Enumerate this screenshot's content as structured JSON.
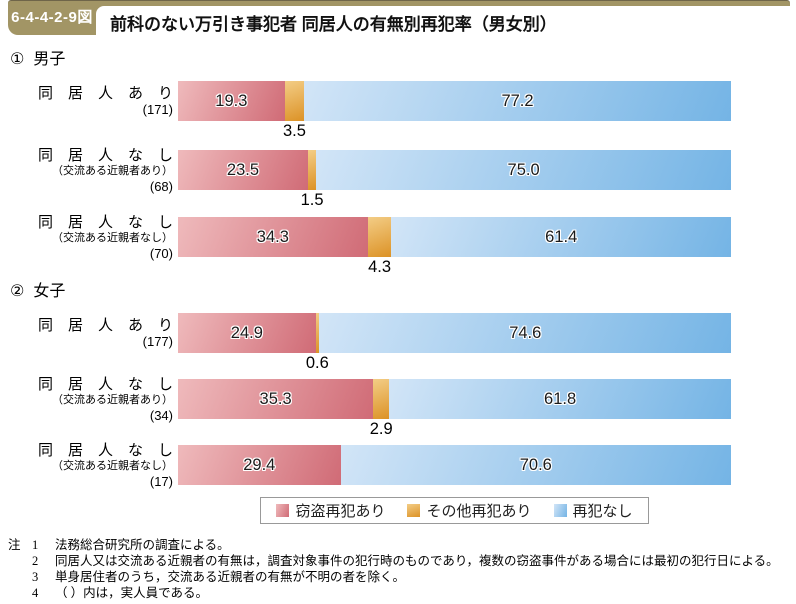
{
  "header": {
    "figure_number": "6-4-4-2-9図",
    "title": "前科のない万引き事犯者 同居人の有無別再犯率（男女別）"
  },
  "colors": {
    "band_gold": "#a29565",
    "theft_pink_light": "#efbabc",
    "theft_pink_dark": "#d06b76",
    "other_orange_light": "#f3cd86",
    "other_orange_dark": "#dc9226",
    "none_blue_light": "#d2e5f7",
    "none_blue_dark": "#74b4e5"
  },
  "chart_data": {
    "type": "bar",
    "orientation": "horizontal",
    "stacked": true,
    "unit": "percent",
    "x_range": [
      0,
      100
    ],
    "series_names": [
      "窃盗再犯あり",
      "その他再犯あり",
      "再犯なし"
    ],
    "legend": {
      "position": "bottom-center",
      "items": [
        {
          "label": "窃盗再犯あり",
          "color_key": "pink"
        },
        {
          "label": "その他再犯あり",
          "color_key": "orange"
        },
        {
          "label": "再犯なし",
          "color_key": "blue"
        }
      ]
    },
    "sections": [
      {
        "marker": "①",
        "title": "男子",
        "rows": [
          {
            "label": "同　居　人　あ　り",
            "sublabel": "",
            "count": "(171)",
            "values": [
              19.3,
              3.5,
              77.2
            ],
            "labels": [
              "19.3",
              "3.5",
              "77.2"
            ]
          },
          {
            "label": "同　居　人　な　し",
            "sublabel": "（交流ある近親者あり）",
            "count": "(68)",
            "values": [
              23.5,
              1.5,
              75.0
            ],
            "labels": [
              "23.5",
              "1.5",
              "75.0"
            ]
          },
          {
            "label": "同　居　人　な　し",
            "sublabel": "（交流ある近親者なし）",
            "count": "(70)",
            "values": [
              34.3,
              4.3,
              61.4
            ],
            "labels": [
              "34.3",
              "4.3",
              "61.4"
            ]
          }
        ]
      },
      {
        "marker": "②",
        "title": "女子",
        "rows": [
          {
            "label": "同　居　人　あ　り",
            "sublabel": "",
            "count": "(177)",
            "values": [
              24.9,
              0.6,
              74.6
            ],
            "labels": [
              "24.9",
              "0.6",
              "74.6"
            ]
          },
          {
            "label": "同　居　人　な　し",
            "sublabel": "（交流ある近親者あり）",
            "count": "(34)",
            "values": [
              35.3,
              2.9,
              61.8
            ],
            "labels": [
              "35.3",
              "2.9",
              "61.8"
            ]
          },
          {
            "label": "同　居　人　な　し",
            "sublabel": "（交流ある近親者なし）",
            "count": "(17)",
            "values": [
              29.4,
              0,
              70.6
            ],
            "labels": [
              "29.4",
              "",
              "70.6"
            ]
          }
        ]
      }
    ]
  },
  "notes": {
    "marker": "注",
    "items": [
      {
        "num": "1",
        "text": "法務総合研究所の調査による。"
      },
      {
        "num": "2",
        "text": "同居人又は交流ある近親者の有無は，調査対象事件の犯行時のものであり，複数の窃盗事件がある場合には最初の犯行日による。"
      },
      {
        "num": "3",
        "text": "単身居住者のうち，交流ある近親者の有無が不明の者を除く。"
      },
      {
        "num": "4",
        "text": "（ ）内は，実人員である。"
      }
    ]
  }
}
